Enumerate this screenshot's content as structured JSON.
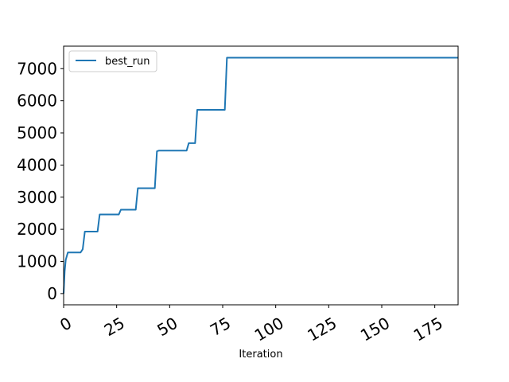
{
  "chart_data": {
    "type": "line",
    "title": "",
    "xlabel": "Iteration",
    "ylabel": "",
    "xlim": [
      0,
      186
    ],
    "ylim": [
      -350,
      7700
    ],
    "xticks": [
      0,
      25,
      50,
      75,
      100,
      125,
      150,
      175
    ],
    "xtick_labels": [
      "0",
      "25",
      "50",
      "75",
      "100",
      "125",
      "150",
      "175"
    ],
    "yticks": [
      0,
      1000,
      2000,
      3000,
      4000,
      5000,
      6000,
      7000
    ],
    "ytick_labels": [
      "0",
      "1000",
      "2000",
      "3000",
      "4000",
      "5000",
      "6000",
      "7000"
    ],
    "grid": false,
    "legend": {
      "position": "top-left"
    },
    "series": [
      {
        "name": "best_run",
        "color": "#1f77b4",
        "x": [
          0,
          0.5,
          1,
          2,
          8,
          9,
          10,
          16,
          17,
          26,
          27,
          34,
          35,
          43,
          44,
          45,
          58,
          59,
          62,
          63,
          76,
          77,
          186
        ],
        "y": [
          0,
          700,
          1050,
          1280,
          1280,
          1380,
          1930,
          1930,
          2460,
          2460,
          2610,
          2610,
          3280,
          3280,
          4430,
          4450,
          4450,
          4680,
          4680,
          5720,
          5720,
          7340,
          7340
        ]
      }
    ]
  }
}
